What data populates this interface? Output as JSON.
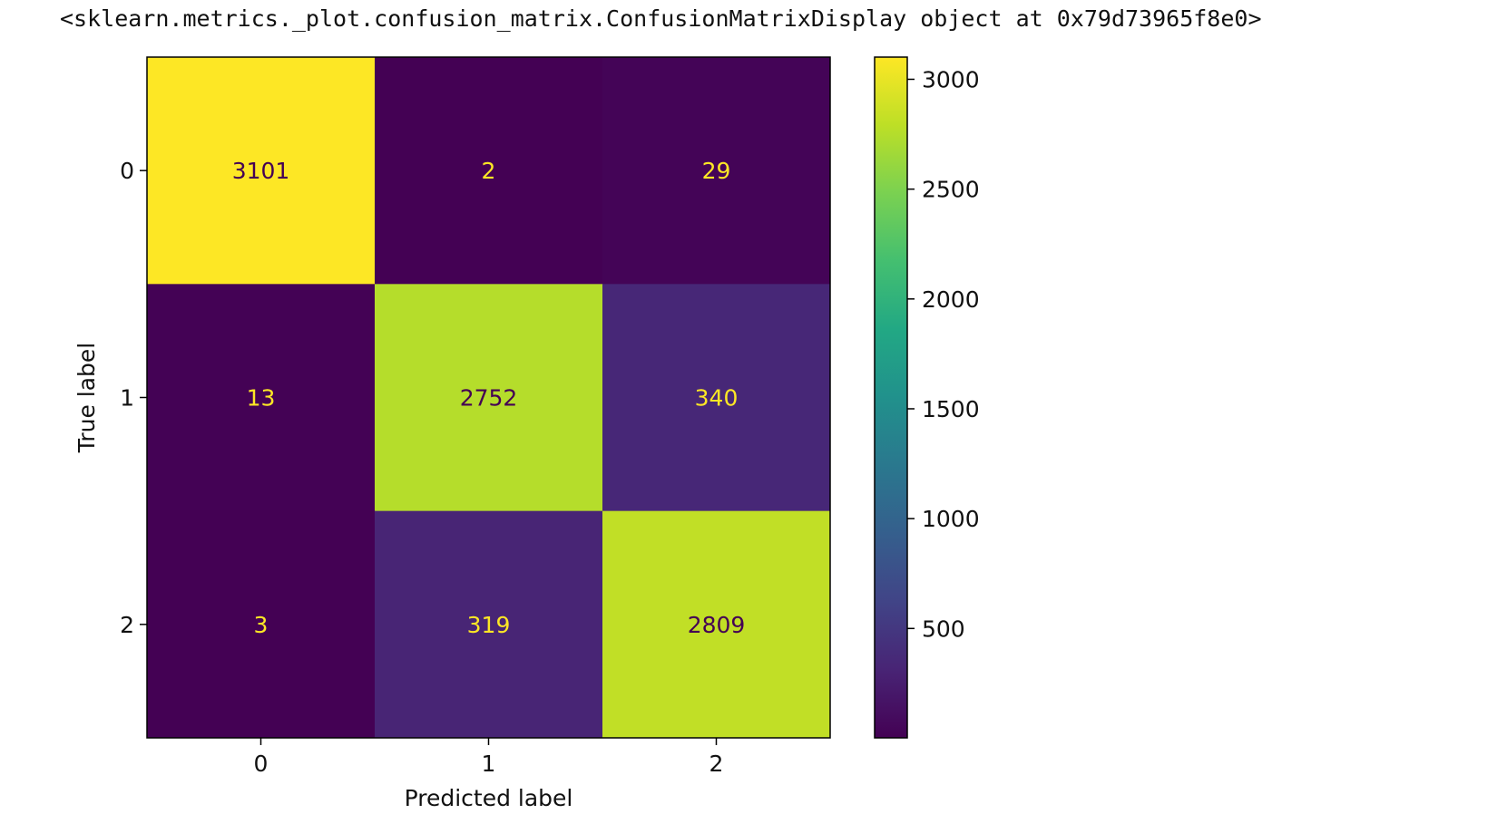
{
  "output": {
    "repr": "<sklearn.metrics._plot.confusion_matrix.ConfusionMatrixDisplay object at 0x79d73965f8e0>"
  },
  "chart_data": {
    "type": "heatmap",
    "title": "",
    "xlabel": "Predicted label",
    "ylabel": "True label",
    "x_categories": [
      "0",
      "1",
      "2"
    ],
    "y_categories": [
      "0",
      "1",
      "2"
    ],
    "values": [
      [
        3101,
        2,
        29
      ],
      [
        13,
        2752,
        340
      ],
      [
        3,
        319,
        2809
      ]
    ],
    "colormap": "viridis",
    "colorbar": {
      "range": [
        2,
        3101
      ],
      "ticks": [
        500,
        1000,
        1500,
        2000,
        2500,
        3000
      ]
    },
    "text_colors": {
      "light": "#fde725",
      "dark": "#440154"
    },
    "grid": false
  }
}
